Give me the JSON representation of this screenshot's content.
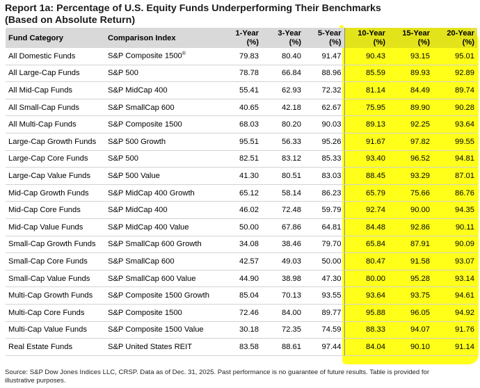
{
  "title_line1": "Report 1a: Percentage of U.S. Equity Funds Underperforming Their Benchmarks",
  "title_line2": "(Based on Absolute Return)",
  "headers": {
    "fund_category": "Fund Category",
    "comparison_index": "Comparison Index",
    "y1": "1-Year",
    "y3": "3-Year",
    "y5": "5-Year",
    "y10": "10-Year",
    "y15": "15-Year",
    "y20": "20-Year",
    "unit": "(%)"
  },
  "rows": [
    {
      "category": "All Domestic Funds",
      "index": "S&P Composite 1500",
      "index_sup": "®",
      "y1": "79.83",
      "y3": "80.40",
      "y5": "91.47",
      "y10": "90.43",
      "y15": "93.15",
      "y20": "95.01"
    },
    {
      "category": "All Large-Cap Funds",
      "index": "S&P 500",
      "y1": "78.78",
      "y3": "66.84",
      "y5": "88.96",
      "y10": "85.59",
      "y15": "89.93",
      "y20": "92.89"
    },
    {
      "category": "All Mid-Cap Funds",
      "index": "S&P MidCap 400",
      "y1": "55.41",
      "y3": "62.93",
      "y5": "72.32",
      "y10": "81.14",
      "y15": "84.49",
      "y20": "89.74"
    },
    {
      "category": "All Small-Cap Funds",
      "index": "S&P SmallCap 600",
      "y1": "40.65",
      "y3": "42.18",
      "y5": "62.67",
      "y10": "75.95",
      "y15": "89.90",
      "y20": "90.28"
    },
    {
      "category": "All Multi-Cap Funds",
      "index": "S&P Composite 1500",
      "y1": "68.03",
      "y3": "80.20",
      "y5": "90.03",
      "y10": "89.13",
      "y15": "92.25",
      "y20": "93.64"
    },
    {
      "category": "Large-Cap Growth Funds",
      "index": "S&P 500 Growth",
      "y1": "95.51",
      "y3": "56.33",
      "y5": "95.26",
      "y10": "91.67",
      "y15": "97.82",
      "y20": "99.55"
    },
    {
      "category": "Large-Cap Core Funds",
      "index": "S&P 500",
      "y1": "82.51",
      "y3": "83.12",
      "y5": "85.33",
      "y10": "93.40",
      "y15": "96.52",
      "y20": "94.81"
    },
    {
      "category": "Large-Cap Value Funds",
      "index": "S&P 500 Value",
      "y1": "41.30",
      "y3": "80.51",
      "y5": "83.03",
      "y10": "88.45",
      "y15": "93.29",
      "y20": "87.01"
    },
    {
      "category": "Mid-Cap Growth Funds",
      "index": "S&P MidCap 400 Growth",
      "y1": "65.12",
      "y3": "58.14",
      "y5": "86.23",
      "y10": "65.79",
      "y15": "75.66",
      "y20": "86.76"
    },
    {
      "category": "Mid-Cap Core Funds",
      "index": "S&P MidCap 400",
      "y1": "46.02",
      "y3": "72.48",
      "y5": "59.79",
      "y10": "92.74",
      "y15": "90.00",
      "y20": "94.35"
    },
    {
      "category": "Mid-Cap Value Funds",
      "index": "S&P MidCap 400 Value",
      "y1": "50.00",
      "y3": "67.86",
      "y5": "64.81",
      "y10": "84.48",
      "y15": "92.86",
      "y20": "90.11"
    },
    {
      "category": "Small-Cap Growth Funds",
      "index": "S&P SmallCap 600 Growth",
      "y1": "34.08",
      "y3": "38.46",
      "y5": "79.70",
      "y10": "65.84",
      "y15": "87.91",
      "y20": "90.09"
    },
    {
      "category": "Small-Cap Core Funds",
      "index": "S&P SmallCap 600",
      "y1": "42.57",
      "y3": "49.03",
      "y5": "50.00",
      "y10": "80.47",
      "y15": "91.58",
      "y20": "93.07"
    },
    {
      "category": "Small-Cap Value Funds",
      "index": "S&P SmallCap 600 Value",
      "y1": "44.90",
      "y3": "38.98",
      "y5": "47.30",
      "y10": "80.00",
      "y15": "95.28",
      "y20": "93.14"
    },
    {
      "category": "Multi-Cap Growth Funds",
      "index": "S&P Composite 1500 Growth",
      "y1": "85.04",
      "y3": "70.13",
      "y5": "93.55",
      "y10": "93.64",
      "y15": "93.75",
      "y20": "94.61"
    },
    {
      "category": "Multi-Cap Core Funds",
      "index": "S&P Composite 1500",
      "y1": "72.46",
      "y3": "84.00",
      "y5": "89.77",
      "y10": "95.88",
      "y15": "96.05",
      "y20": "94.92"
    },
    {
      "category": "Multi-Cap Value Funds",
      "index": "S&P Composite 1500 Value",
      "y1": "30.18",
      "y3": "72.35",
      "y5": "74.59",
      "y10": "88.33",
      "y15": "94.07",
      "y20": "91.76"
    },
    {
      "category": "Real Estate Funds",
      "index": "S&P United States REIT",
      "y1": "83.58",
      "y3": "88.61",
      "y5": "97.44",
      "y10": "84.04",
      "y15": "90.10",
      "y20": "91.14"
    }
  ],
  "source": "Source: S&P Dow Jones Indices LLC, CRSP.  Data as of Dec. 31, 2025.  Past performance is no guarantee of future results.  Table is provided for illustrative purposes.",
  "colors": {
    "highlight": "#ffff1a",
    "header": "#d9d9d9"
  }
}
